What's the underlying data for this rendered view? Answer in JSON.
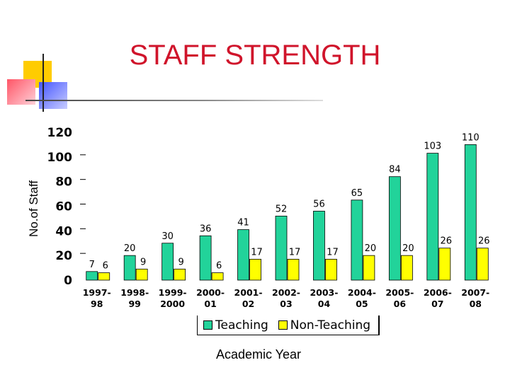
{
  "title": "STAFF STRENGTH",
  "colors": {
    "teaching": "#22d39a",
    "non_teaching": "#ffff00",
    "title": "#d0142b"
  },
  "chart_data": {
    "type": "bar",
    "categories": [
      "1997-98",
      "1998-99",
      "1999-2000",
      "2000-01",
      "2001-02",
      "2002-03",
      "2003-04",
      "2004-05",
      "2005-06",
      "2006-07",
      "2007-08"
    ],
    "category_lines": [
      [
        "1997-",
        "98"
      ],
      [
        "1998-",
        "99"
      ],
      [
        "1999-",
        "2000"
      ],
      [
        "2000-",
        "01"
      ],
      [
        "2001-",
        "02"
      ],
      [
        "2002-",
        "03"
      ],
      [
        "2003-",
        "04"
      ],
      [
        "2004-",
        "05"
      ],
      [
        "2005-",
        "06"
      ],
      [
        "2006-",
        "07"
      ],
      [
        "2007-",
        "08"
      ]
    ],
    "series": [
      {
        "name": "Teaching",
        "values": [
          7,
          20,
          30,
          36,
          41,
          52,
          56,
          65,
          84,
          103,
          110
        ]
      },
      {
        "name": "Non-Teaching",
        "values": [
          6,
          9,
          9,
          6,
          17,
          17,
          17,
          20,
          20,
          26,
          26
        ]
      }
    ],
    "ylim": [
      0,
      120
    ],
    "yticks": [
      0,
      20,
      40,
      60,
      80,
      100,
      120
    ],
    "ylabel": "No.of Staff",
    "xlabel": "Academic Year",
    "legend_position": "bottom"
  }
}
